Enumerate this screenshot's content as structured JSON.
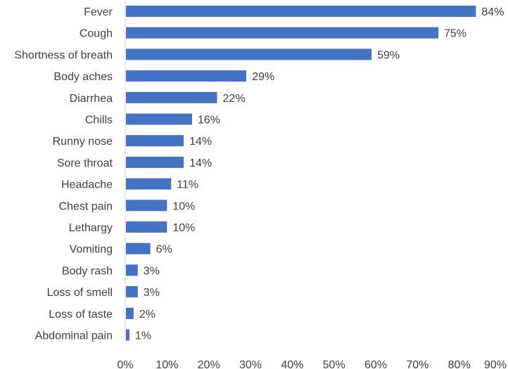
{
  "chart_data": {
    "type": "bar",
    "orientation": "horizontal",
    "categories": [
      "Fever",
      "Cough",
      "Shortness of breath",
      "Body aches",
      "Diarrhea",
      "Chills",
      "Runny nose",
      "Sore throat",
      "Headache",
      "Chest pain",
      "Lethargy",
      "Vomiting",
      "Body rash",
      "Loss of smell",
      "Loss of taste",
      "Abdominal pain"
    ],
    "values": [
      84,
      75,
      59,
      29,
      22,
      16,
      14,
      14,
      11,
      10,
      10,
      6,
      3,
      3,
      2,
      1
    ],
    "value_labels": [
      "84%",
      "75%",
      "59%",
      "29%",
      "22%",
      "16%",
      "14%",
      "14%",
      "11%",
      "10%",
      "10%",
      "6%",
      "3%",
      "3%",
      "2%",
      "1%"
    ],
    "x_ticks": [
      "0%",
      "10%",
      "20%",
      "30%",
      "40%",
      "50%",
      "60%",
      "70%",
      "80%",
      "90%"
    ],
    "xlim": [
      0,
      90
    ],
    "title": "",
    "xlabel": "",
    "ylabel": "",
    "grid": false,
    "bar_color": "#4472C4"
  }
}
